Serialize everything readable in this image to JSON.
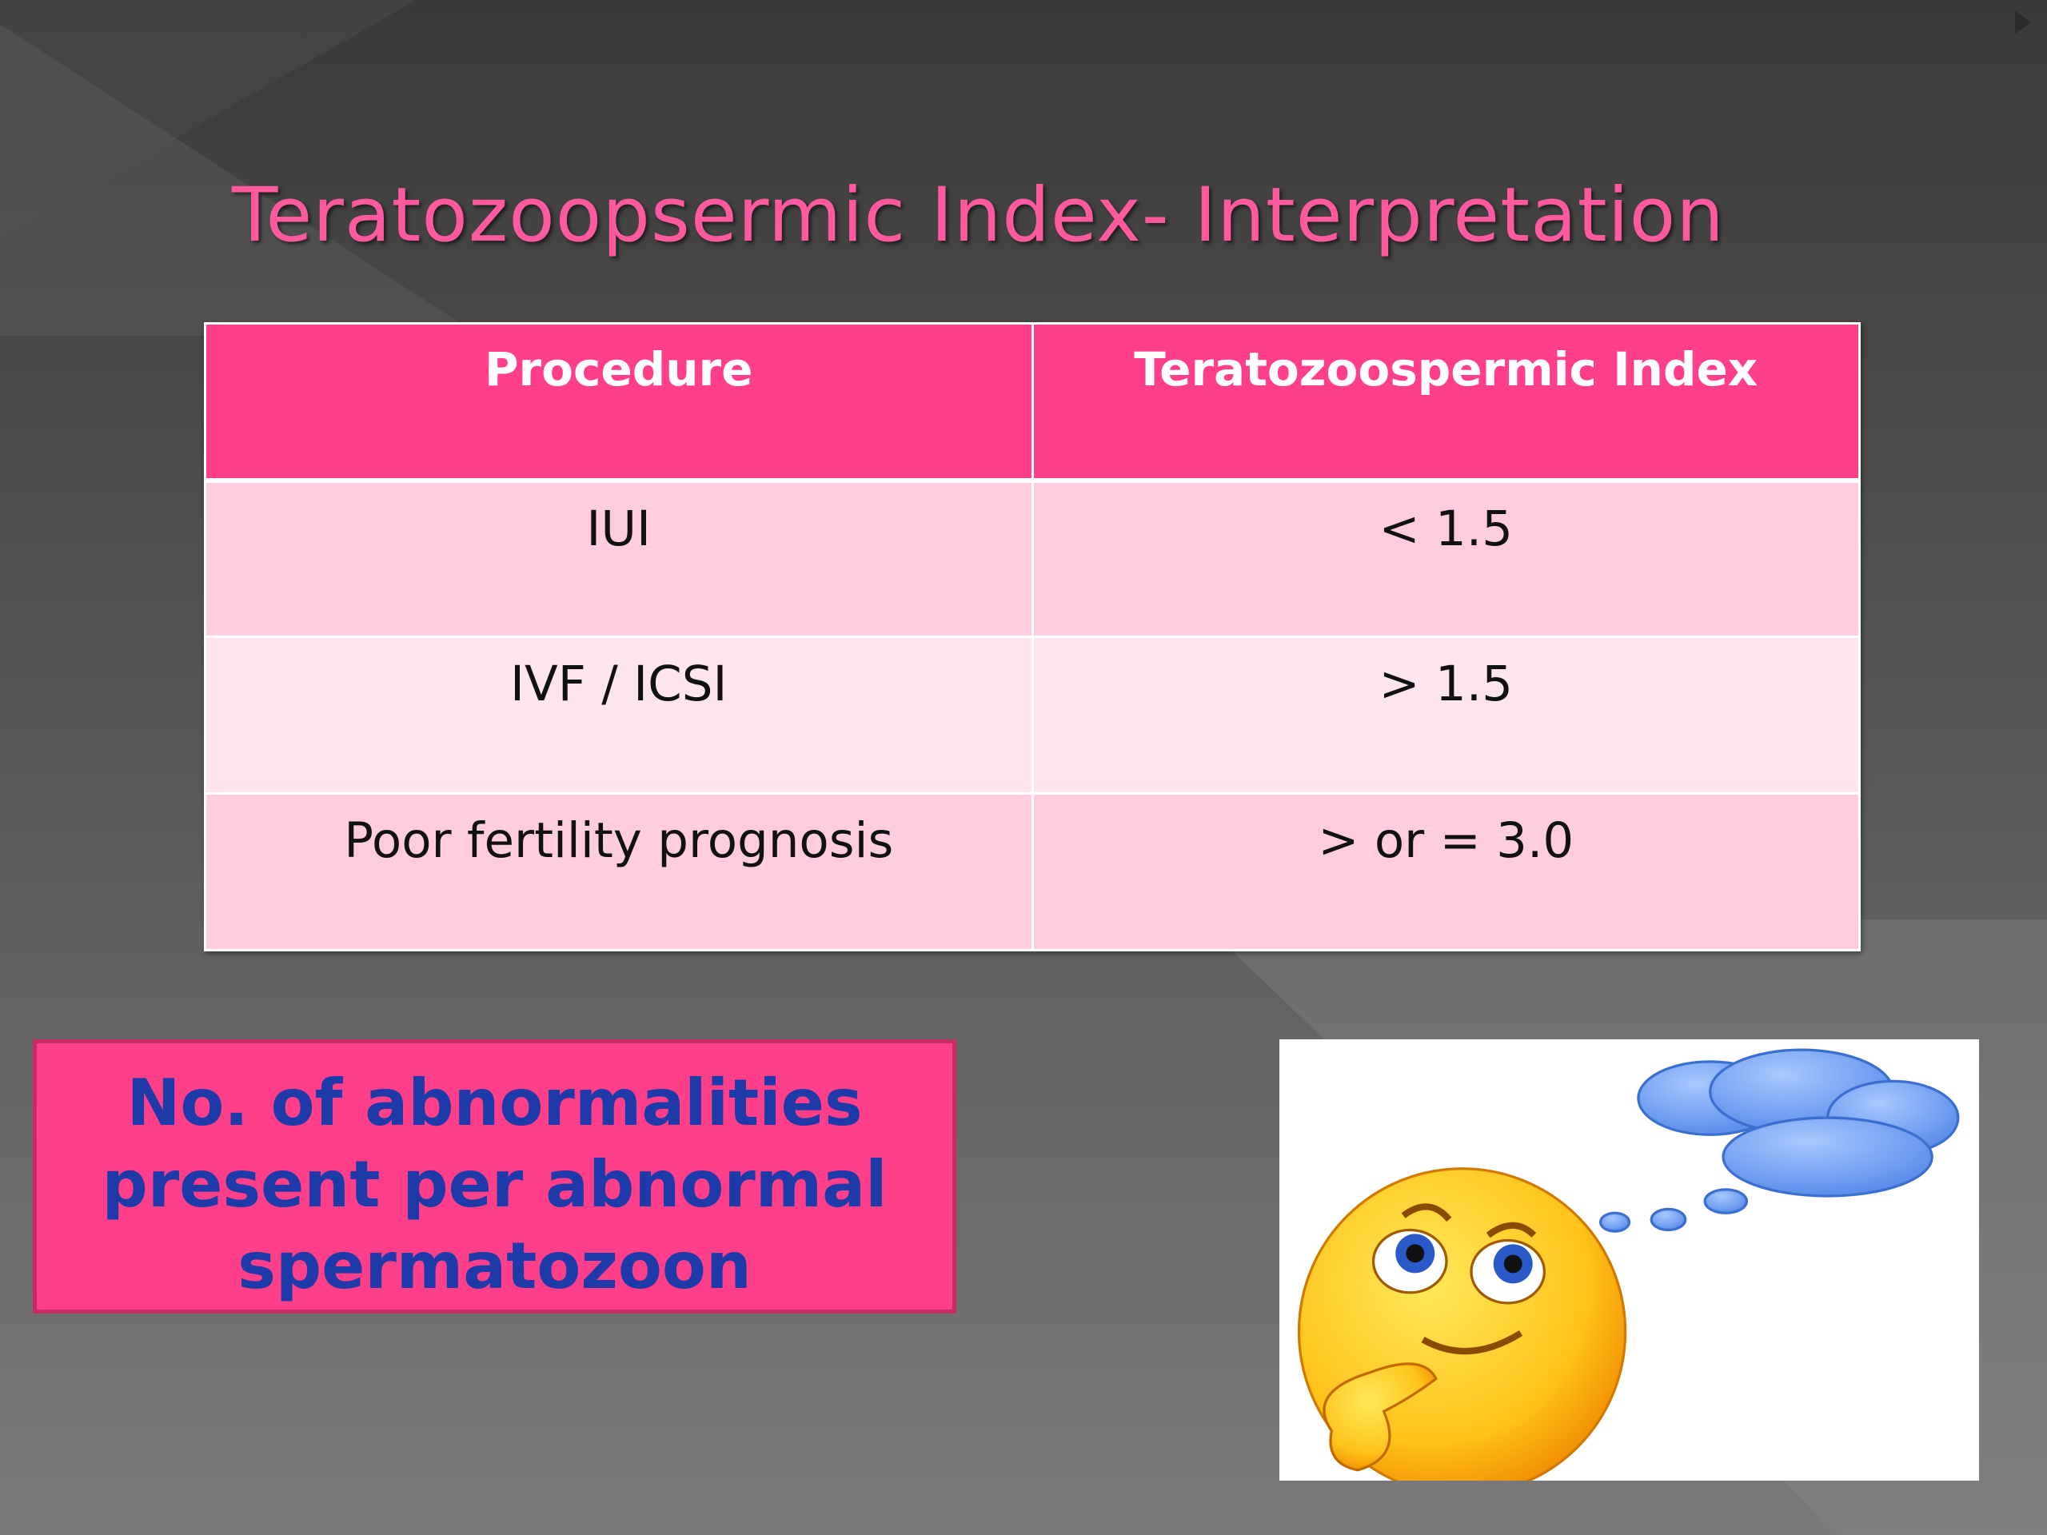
{
  "header": {
    "title": "Teratozoopsermic Index- Interpretation"
  },
  "table": {
    "columns": [
      "Procedure",
      "Teratozoospermic Index"
    ],
    "rows": [
      [
        "IUI",
        "< 1.5"
      ],
      [
        "IVF / ICSI",
        "> 1.5"
      ],
      [
        "Poor fertility prognosis",
        "> or = 3.0"
      ]
    ]
  },
  "callout": {
    "lines": [
      "No. of abnormalities",
      "present per abnormal",
      "spermatozoon"
    ]
  }
}
